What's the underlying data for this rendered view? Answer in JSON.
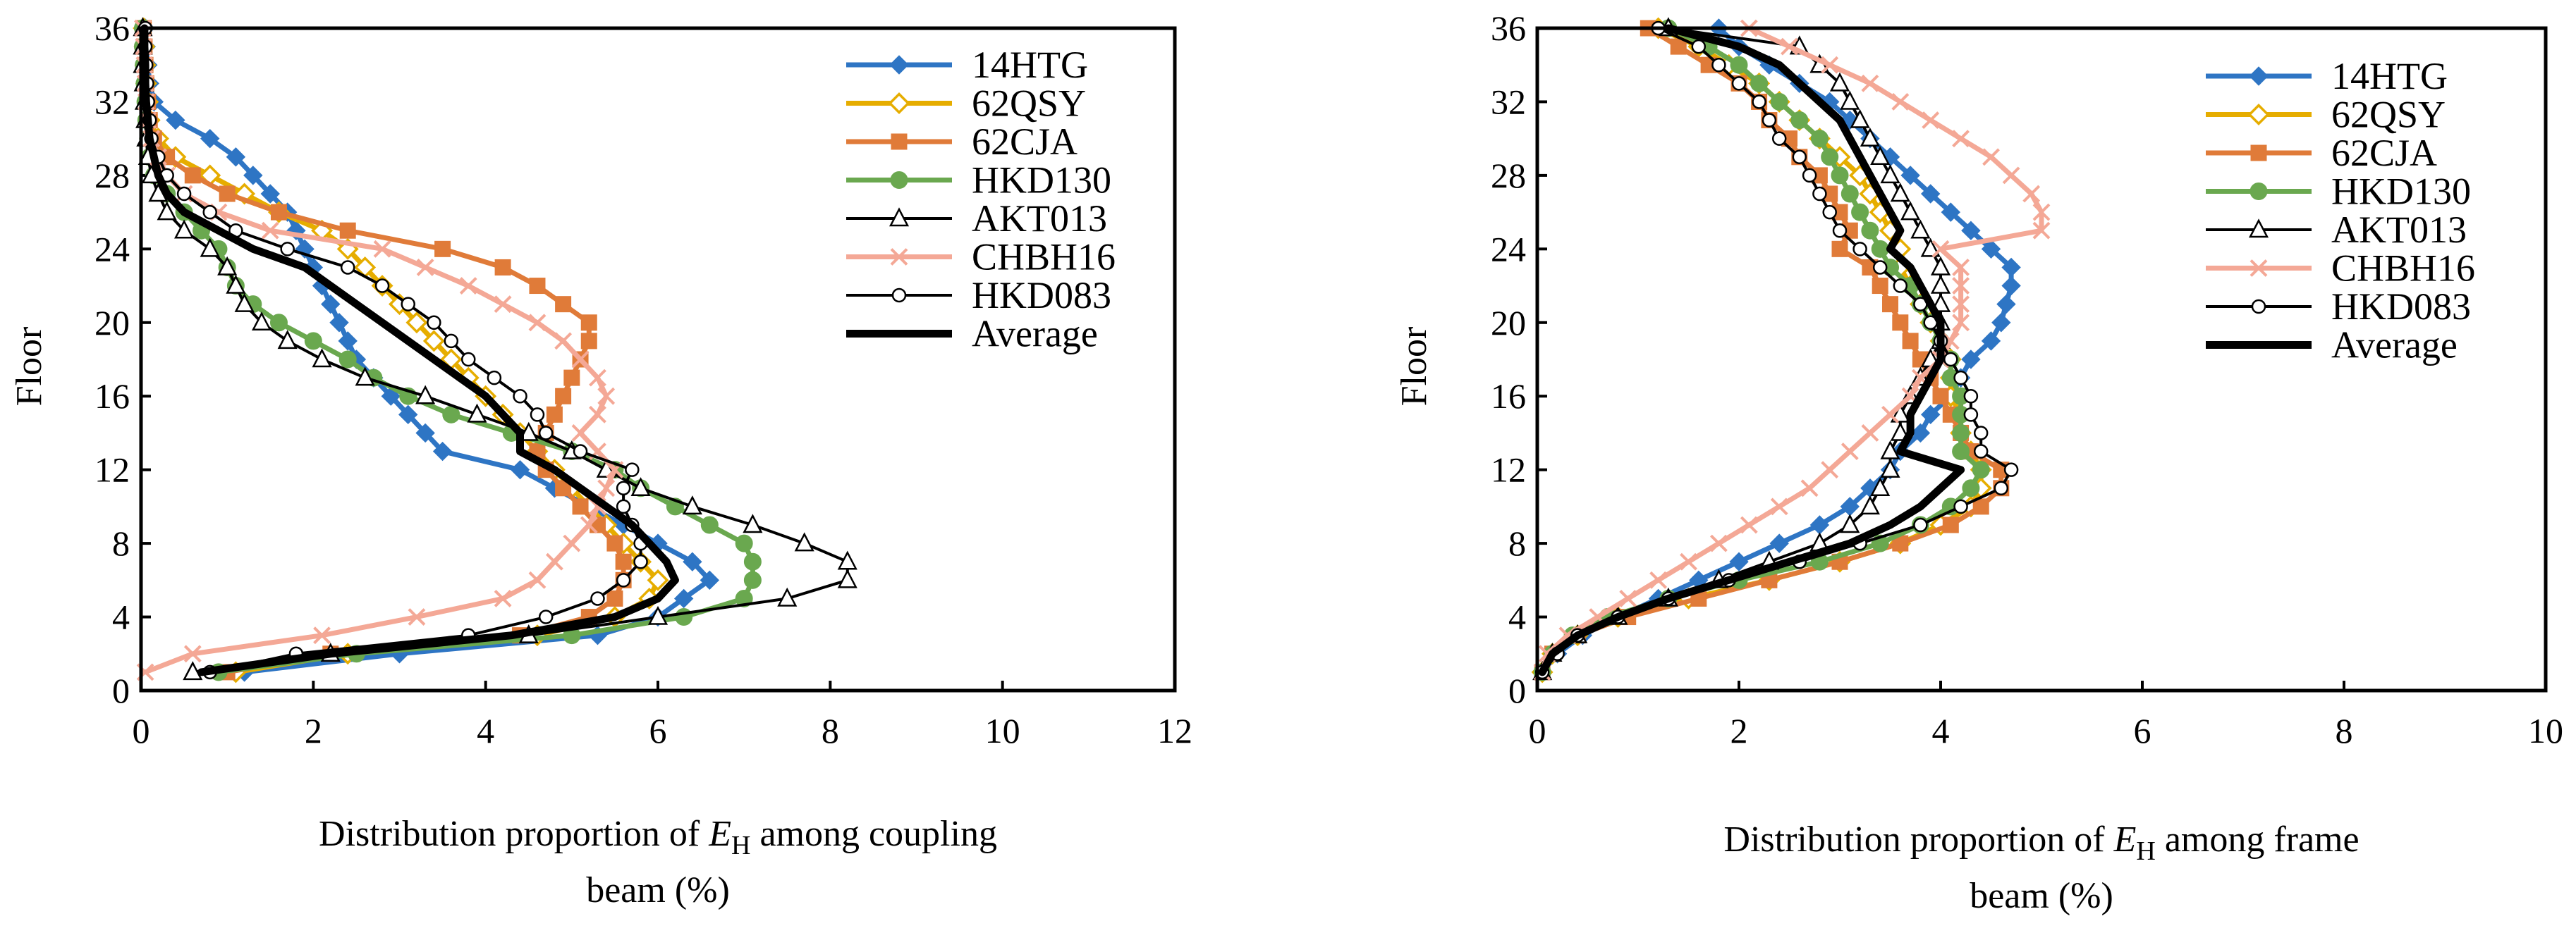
{
  "charts": [
    {
      "panel": "left",
      "xlim": [
        0,
        12
      ],
      "xticks": [
        0,
        2,
        4,
        6,
        8,
        10,
        12
      ],
      "ylim": [
        0,
        36
      ],
      "yticks": [
        0,
        4,
        8,
        12,
        16,
        20,
        24,
        28,
        32,
        36
      ],
      "ylabel": "Floor",
      "xlabel_pre": "Distribution proportion of ",
      "xlabel_sym": "E",
      "xlabel_sub": "H",
      "xlabel_post": " among coupling",
      "xlabel_line2": "beam (%)"
    },
    {
      "panel": "right",
      "xlim": [
        0,
        10
      ],
      "xticks": [
        0,
        2,
        4,
        6,
        8,
        10
      ],
      "ylim": [
        0,
        36
      ],
      "yticks": [
        0,
        4,
        8,
        12,
        16,
        20,
        24,
        28,
        32,
        36
      ],
      "ylabel": "Floor",
      "xlabel_pre": "Distribution proportion of ",
      "xlabel_sym": "E",
      "xlabel_sub": "H",
      "xlabel_post": " among frame",
      "xlabel_line2": "beam (%)"
    }
  ],
  "legend": {
    "entries": [
      "14HTG",
      "62QSY",
      "62CJA",
      "HKD130",
      "AKT013",
      "CHBH16",
      "HKD083",
      "Average"
    ],
    "colors": [
      "#2e75c4",
      "#e6ad00",
      "#e07b39",
      "#6aa84f",
      "#000000",
      "#f4a896",
      "#000000",
      "#000000"
    ],
    "markers": [
      "diamond",
      "diamond-open",
      "square",
      "circle",
      "triangle-open",
      "x",
      "circle-open",
      "none"
    ]
  },
  "chart_data": [
    {
      "type": "line",
      "title": "",
      "xlabel": "Distribution proportion of EH among coupling beam (%)",
      "ylabel": "Floor",
      "xlim": [
        0,
        12
      ],
      "ylim": [
        0,
        36
      ],
      "floors": [
        1,
        2,
        3,
        4,
        5,
        6,
        7,
        8,
        9,
        10,
        11,
        12,
        13,
        14,
        15,
        16,
        17,
        18,
        19,
        20,
        21,
        22,
        23,
        24,
        25,
        26,
        27,
        28,
        29,
        30,
        31,
        32,
        33,
        34,
        35,
        36
      ],
      "series": [
        {
          "name": "14HTG",
          "values": [
            1.2,
            3.0,
            5.3,
            6.0,
            6.3,
            6.6,
            6.4,
            6.0,
            5.6,
            5.2,
            4.8,
            4.4,
            3.5,
            3.3,
            3.1,
            2.9,
            2.7,
            2.5,
            2.4,
            2.3,
            2.2,
            2.1,
            2.0,
            1.9,
            1.8,
            1.7,
            1.5,
            1.3,
            1.1,
            0.8,
            0.4,
            0.15,
            0.1,
            0.08,
            0.06,
            0.05
          ]
        },
        {
          "name": "62QSY",
          "values": [
            1.1,
            2.4,
            4.6,
            5.5,
            5.9,
            6.0,
            5.8,
            5.6,
            5.4,
            5.2,
            5.0,
            4.8,
            4.6,
            4.4,
            4.2,
            4.0,
            3.8,
            3.6,
            3.4,
            3.2,
            3.0,
            2.8,
            2.6,
            2.4,
            2.1,
            1.6,
            1.2,
            0.8,
            0.4,
            0.2,
            0.1,
            0.08,
            0.06,
            0.05,
            0.04,
            0.03
          ]
        },
        {
          "name": "62CJA",
          "values": [
            1.0,
            2.2,
            4.4,
            5.2,
            5.5,
            5.6,
            5.6,
            5.5,
            5.3,
            5.1,
            4.9,
            4.7,
            4.6,
            4.7,
            4.8,
            4.9,
            5.0,
            5.1,
            5.2,
            5.2,
            4.9,
            4.6,
            4.2,
            3.5,
            2.4,
            1.6,
            1.0,
            0.6,
            0.3,
            0.15,
            0.1,
            0.08,
            0.06,
            0.05,
            0.04,
            0.03
          ]
        },
        {
          "name": "HKD130",
          "values": [
            0.9,
            2.5,
            5.0,
            6.3,
            7.0,
            7.1,
            7.1,
            7.0,
            6.6,
            6.2,
            5.8,
            5.5,
            5.0,
            4.3,
            3.6,
            3.1,
            2.7,
            2.4,
            2.0,
            1.6,
            1.3,
            1.1,
            1.0,
            0.9,
            0.7,
            0.5,
            0.3,
            0.15,
            0.1,
            0.08,
            0.06,
            0.05,
            0.04,
            0.03,
            0.02,
            0.02
          ]
        },
        {
          "name": "AKT013",
          "values": [
            0.6,
            2.2,
            4.5,
            6.0,
            7.5,
            8.2,
            8.2,
            7.7,
            7.1,
            6.4,
            5.8,
            5.4,
            5.0,
            4.5,
            3.9,
            3.3,
            2.6,
            2.1,
            1.7,
            1.4,
            1.2,
            1.1,
            1.0,
            0.8,
            0.5,
            0.3,
            0.2,
            0.12,
            0.08,
            0.06,
            0.05,
            0.04,
            0.03,
            0.02,
            0.02,
            0.02
          ]
        },
        {
          "name": "CHBH16",
          "values": [
            0.05,
            0.6,
            2.1,
            3.2,
            4.2,
            4.6,
            4.8,
            5.0,
            5.2,
            5.3,
            5.4,
            5.5,
            5.3,
            5.1,
            5.3,
            5.4,
            5.3,
            5.1,
            4.9,
            4.6,
            4.2,
            3.8,
            3.3,
            2.8,
            1.5,
            0.9,
            0.5,
            0.3,
            0.2,
            0.12,
            0.08,
            0.06,
            0.05,
            0.04,
            0.03,
            0.02
          ]
        },
        {
          "name": "HKD083",
          "values": [
            0.8,
            1.8,
            3.8,
            4.7,
            5.3,
            5.6,
            5.8,
            5.8,
            5.7,
            5.6,
            5.6,
            5.7,
            5.1,
            4.7,
            4.6,
            4.4,
            4.1,
            3.8,
            3.6,
            3.4,
            3.1,
            2.8,
            2.4,
            1.7,
            1.1,
            0.8,
            0.5,
            0.3,
            0.2,
            0.12,
            0.1,
            0.08,
            0.07,
            0.06,
            0.05,
            0.05
          ]
        },
        {
          "name": "Average",
          "values": [
            0.7,
            2.2,
            4.3,
            5.5,
            6.0,
            6.2,
            6.1,
            5.9,
            5.7,
            5.4,
            5.1,
            4.8,
            4.4,
            4.4,
            4.2,
            4.0,
            3.7,
            3.4,
            3.1,
            2.8,
            2.5,
            2.2,
            1.9,
            1.3,
            0.9,
            0.5,
            0.3,
            0.2,
            0.15,
            0.1,
            0.08,
            0.06,
            0.05,
            0.05,
            0.04,
            0.04
          ]
        }
      ]
    },
    {
      "type": "line",
      "title": "",
      "xlabel": "Distribution proportion of EH among frame beam (%)",
      "ylabel": "Floor",
      "xlim": [
        0,
        10
      ],
      "ylim": [
        0,
        36
      ],
      "floors": [
        1,
        2,
        3,
        4,
        5,
        6,
        7,
        8,
        9,
        10,
        11,
        12,
        13,
        14,
        15,
        16,
        17,
        18,
        19,
        20,
        21,
        22,
        23,
        24,
        25,
        26,
        27,
        28,
        29,
        30,
        31,
        32,
        33,
        34,
        35,
        36
      ],
      "series": [
        {
          "name": "14HTG",
          "values": [
            0.05,
            0.2,
            0.45,
            0.8,
            1.2,
            1.6,
            2.0,
            2.4,
            2.8,
            3.1,
            3.3,
            3.5,
            3.6,
            3.8,
            3.9,
            4.1,
            4.2,
            4.3,
            4.5,
            4.6,
            4.65,
            4.7,
            4.7,
            4.5,
            4.3,
            4.1,
            3.9,
            3.7,
            3.5,
            3.3,
            3.1,
            2.9,
            2.6,
            2.3,
            2.0,
            1.8
          ]
        },
        {
          "name": "62QSY",
          "values": [
            0.05,
            0.15,
            0.4,
            0.8,
            1.5,
            2.3,
            3.0,
            3.6,
            4.0,
            4.3,
            4.4,
            4.4,
            4.3,
            4.2,
            4.2,
            4.1,
            4.1,
            4.1,
            4.0,
            3.9,
            3.8,
            3.7,
            3.6,
            3.6,
            3.5,
            3.4,
            3.3,
            3.2,
            3.0,
            2.8,
            2.6,
            2.4,
            2.2,
            1.9,
            1.6,
            1.2
          ]
        },
        {
          "name": "62CJA",
          "values": [
            0.05,
            0.15,
            0.4,
            0.9,
            1.6,
            2.3,
            3.0,
            3.6,
            4.1,
            4.4,
            4.6,
            4.6,
            4.3,
            4.2,
            4.1,
            4.0,
            3.9,
            3.8,
            3.7,
            3.6,
            3.5,
            3.4,
            3.3,
            3.0,
            3.1,
            3.0,
            2.9,
            2.8,
            2.6,
            2.5,
            2.3,
            2.2,
            2.0,
            1.7,
            1.4,
            1.1
          ]
        },
        {
          "name": "HKD130",
          "values": [
            0.05,
            0.15,
            0.35,
            0.7,
            1.3,
            2.0,
            2.8,
            3.4,
            3.8,
            4.1,
            4.3,
            4.4,
            4.2,
            4.2,
            4.2,
            4.2,
            4.1,
            4.1,
            4.0,
            3.9,
            3.8,
            3.7,
            3.5,
            3.4,
            3.3,
            3.2,
            3.1,
            3.0,
            2.9,
            2.8,
            2.6,
            2.4,
            2.2,
            2.0,
            1.7,
            1.3
          ]
        },
        {
          "name": "AKT013",
          "values": [
            0.05,
            0.15,
            0.4,
            0.8,
            1.3,
            1.8,
            2.3,
            2.8,
            3.1,
            3.3,
            3.4,
            3.5,
            3.5,
            3.6,
            3.6,
            3.7,
            3.8,
            3.9,
            4.0,
            4.0,
            4.0,
            4.0,
            4.0,
            3.9,
            3.8,
            3.7,
            3.6,
            3.5,
            3.4,
            3.3,
            3.2,
            3.1,
            3.0,
            2.8,
            2.6,
            1.3
          ]
        },
        {
          "name": "CHBH16",
          "values": [
            0.05,
            0.1,
            0.3,
            0.6,
            0.9,
            1.2,
            1.5,
            1.8,
            2.1,
            2.4,
            2.7,
            2.9,
            3.1,
            3.3,
            3.5,
            3.7,
            3.8,
            4.0,
            4.1,
            4.2,
            4.2,
            4.2,
            4.2,
            4.0,
            5.0,
            5.0,
            4.9,
            4.7,
            4.5,
            4.2,
            3.9,
            3.6,
            3.3,
            2.9,
            2.5,
            2.1
          ]
        },
        {
          "name": "HKD083",
          "values": [
            0.05,
            0.2,
            0.4,
            0.8,
            1.3,
            1.9,
            2.6,
            3.2,
            3.8,
            4.2,
            4.6,
            4.7,
            4.4,
            4.4,
            4.3,
            4.3,
            4.2,
            4.1,
            4.0,
            3.9,
            3.8,
            3.6,
            3.4,
            3.2,
            3.0,
            2.9,
            2.8,
            2.7,
            2.6,
            2.4,
            2.3,
            2.2,
            2.0,
            1.8,
            1.6,
            1.2
          ]
        },
        {
          "name": "Average",
          "values": [
            0.05,
            0.15,
            0.4,
            0.8,
            1.3,
            1.9,
            2.5,
            3.1,
            3.5,
            3.8,
            4.0,
            4.2,
            3.6,
            3.7,
            3.7,
            3.8,
            3.9,
            4.0,
            4.0,
            4.0,
            3.9,
            3.8,
            3.7,
            3.5,
            3.6,
            3.5,
            3.4,
            3.3,
            3.2,
            3.1,
            3.0,
            2.8,
            2.6,
            2.4,
            2.0,
            1.3
          ]
        }
      ]
    }
  ]
}
